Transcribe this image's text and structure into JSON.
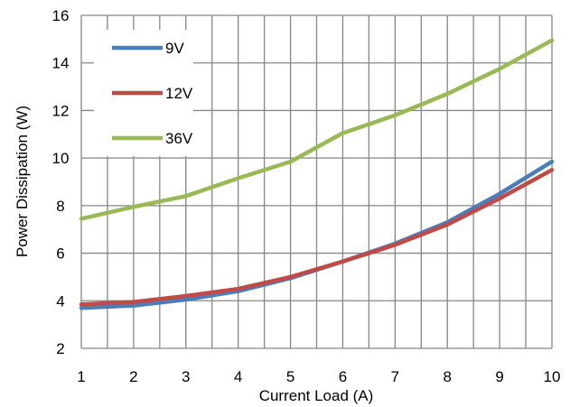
{
  "chart_data": {
    "type": "line",
    "title": "",
    "xlabel": "Current Load (A)",
    "ylabel": "Power Dissipation (W)",
    "xlim": [
      1,
      10
    ],
    "ylim": [
      2,
      16
    ],
    "x_ticks": [
      "1",
      "2",
      "3",
      "4",
      "5",
      "6",
      "7",
      "8",
      "9",
      "10"
    ],
    "y_ticks": [
      "2",
      "4",
      "6",
      "8",
      "10",
      "12",
      "14",
      "16"
    ],
    "grid": true,
    "legend_position": "top-left",
    "x": [
      1,
      2,
      3,
      4,
      5,
      6,
      7,
      8,
      9,
      10
    ],
    "series": [
      {
        "name": "9V",
        "color": "#4a7ebb",
        "values": [
          3.7,
          3.8,
          4.05,
          4.4,
          4.95,
          5.65,
          6.4,
          7.3,
          8.5,
          9.85
        ]
      },
      {
        "name": "12V",
        "color": "#be4b48",
        "values": [
          3.85,
          3.95,
          4.2,
          4.5,
          5.0,
          5.65,
          6.35,
          7.2,
          8.3,
          9.5
        ]
      },
      {
        "name": "36V",
        "color": "#98b954",
        "values": [
          7.45,
          7.95,
          8.4,
          9.15,
          9.85,
          11.05,
          11.8,
          12.7,
          13.75,
          14.95
        ]
      }
    ]
  }
}
